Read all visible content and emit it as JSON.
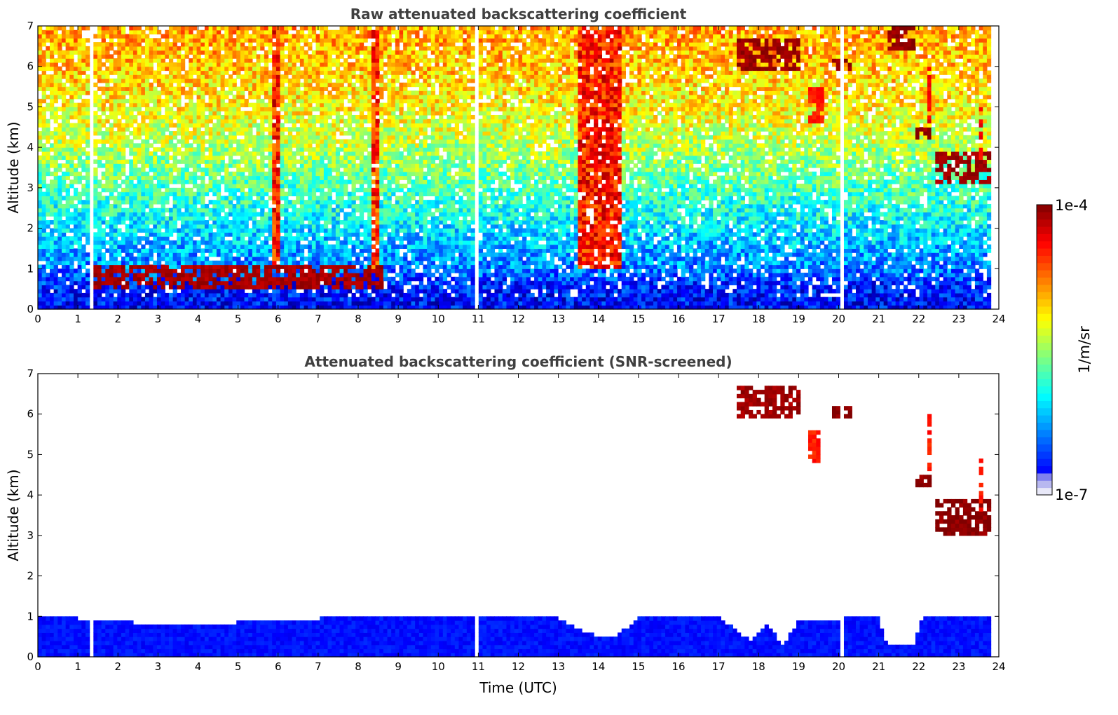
{
  "chart_data": [
    {
      "type": "heatmap",
      "title": "Raw attenuated backscattering coefficient",
      "xlabel": "",
      "ylabel": "Altitude (km)",
      "xlim": [
        0,
        24
      ],
      "ylim": [
        0,
        7
      ],
      "xticks": [
        0,
        1,
        2,
        3,
        4,
        5,
        6,
        7,
        8,
        9,
        10,
        11,
        12,
        13,
        14,
        15,
        16,
        17,
        18,
        19,
        20,
        21,
        22,
        23,
        24
      ],
      "yticks": [
        0,
        1,
        2,
        3,
        4,
        5,
        6,
        7
      ],
      "data_end_time": 23.8,
      "data_gaps_time": [
        1.3,
        11.0,
        20.05
      ],
      "background_profile": [
        {
          "altitude": 0.0,
          "level": 0.12
        },
        {
          "altitude": 0.6,
          "level": 0.16
        },
        {
          "altitude": 1.0,
          "level": 0.25
        },
        {
          "altitude": 2.0,
          "level": 0.35
        },
        {
          "altitude": 3.0,
          "level": 0.45
        },
        {
          "altitude": 4.0,
          "level": 0.55
        },
        {
          "altitude": 5.0,
          "level": 0.63
        },
        {
          "altitude": 6.0,
          "level": 0.68
        },
        {
          "altitude": 7.0,
          "level": 0.72
        }
      ],
      "enhanced_regions": [
        {
          "t0": 13.5,
          "t1": 14.6,
          "z0": 1.0,
          "z1": 7.0,
          "level": 0.85
        },
        {
          "t0": 5.9,
          "t1": 6.0,
          "z0": 1.0,
          "z1": 7.0,
          "level": 0.85
        },
        {
          "t0": 8.3,
          "t1": 8.5,
          "z0": 1.0,
          "z1": 7.0,
          "level": 0.82
        }
      ],
      "features": [
        {
          "name": "boundary layer top",
          "t0": 1.3,
          "t1": 8.6,
          "z0": 0.55,
          "z1": 1.05,
          "level": 0.96
        },
        {
          "name": "cloud",
          "t0": 17.5,
          "t1": 19.0,
          "z0": 5.9,
          "z1": 6.7,
          "level": 0.97
        },
        {
          "name": "cloud",
          "t0": 19.8,
          "t1": 20.3,
          "z0": 5.9,
          "z1": 6.2,
          "level": 0.97
        },
        {
          "name": "cloud",
          "t0": 19.2,
          "t1": 19.6,
          "z0": 4.6,
          "z1": 5.5,
          "level": 0.85
        },
        {
          "name": "cloud",
          "t0": 21.2,
          "t1": 21.9,
          "z0": 6.4,
          "z1": 7.0,
          "level": 0.98
        },
        {
          "name": "cloud",
          "t0": 21.9,
          "t1": 22.3,
          "z0": 4.2,
          "z1": 4.5,
          "level": 0.98
        },
        {
          "name": "cloud",
          "t0": 22.4,
          "t1": 23.8,
          "z0": 3.1,
          "z1": 3.9,
          "level": 0.97
        },
        {
          "name": "fall streak",
          "t0": 22.2,
          "t1": 22.3,
          "z0": 4.5,
          "z1": 6.0,
          "level": 0.88
        },
        {
          "name": "fall streak",
          "t0": 23.5,
          "t1": 23.6,
          "z0": 3.5,
          "z1": 5.0,
          "level": 0.88
        }
      ]
    },
    {
      "type": "heatmap",
      "title": "Attenuated backscattering coefficient (SNR-screened)",
      "xlabel": "Time (UTC)",
      "ylabel": "Altitude (km)",
      "xlim": [
        0,
        24
      ],
      "ylim": [
        0,
        7
      ],
      "xticks": [
        0,
        1,
        2,
        3,
        4,
        5,
        6,
        7,
        8,
        9,
        10,
        11,
        12,
        13,
        14,
        15,
        16,
        17,
        18,
        19,
        20,
        21,
        22,
        23,
        24
      ],
      "yticks": [
        0,
        1,
        2,
        3,
        4,
        5,
        6,
        7
      ],
      "data_end_time": 23.8,
      "data_gaps_time": [
        1.3,
        11.0,
        20.05
      ],
      "layer_top_km": [
        {
          "time": 0.0,
          "top": 1.05
        },
        {
          "time": 1.0,
          "top": 0.95
        },
        {
          "time": 3.0,
          "top": 0.8
        },
        {
          "time": 5.0,
          "top": 0.85
        },
        {
          "time": 7.0,
          "top": 0.95
        },
        {
          "time": 9.0,
          "top": 1.0
        },
        {
          "time": 11.0,
          "top": 1.0
        },
        {
          "time": 13.0,
          "top": 0.95
        },
        {
          "time": 13.5,
          "top": 0.7
        },
        {
          "time": 14.0,
          "top": 0.5
        },
        {
          "time": 14.5,
          "top": 0.55
        },
        {
          "time": 15.0,
          "top": 0.95
        },
        {
          "time": 17.0,
          "top": 1.0
        },
        {
          "time": 17.8,
          "top": 0.4
        },
        {
          "time": 18.2,
          "top": 0.8
        },
        {
          "time": 18.6,
          "top": 0.3
        },
        {
          "time": 19.0,
          "top": 0.9
        },
        {
          "time": 21.0,
          "top": 1.0
        },
        {
          "time": 21.2,
          "top": 0.3
        },
        {
          "time": 21.9,
          "top": 0.35
        },
        {
          "time": 22.1,
          "top": 1.0
        },
        {
          "time": 23.8,
          "top": 1.0
        }
      ],
      "features": [
        {
          "name": "cloud",
          "t0": 17.5,
          "t1": 19.0,
          "z0": 5.9,
          "z1": 6.7,
          "level": 0.97
        },
        {
          "name": "cloud",
          "t0": 19.8,
          "t1": 20.3,
          "z0": 5.9,
          "z1": 6.2,
          "level": 0.99
        },
        {
          "name": "cloud",
          "t0": 19.2,
          "t1": 19.5,
          "z0": 4.8,
          "z1": 5.6,
          "level": 0.85
        },
        {
          "name": "cloud",
          "t0": 21.9,
          "t1": 22.3,
          "z0": 4.2,
          "z1": 4.5,
          "level": 0.99
        },
        {
          "name": "cloud",
          "t0": 22.4,
          "t1": 23.8,
          "z0": 3.0,
          "z1": 3.9,
          "level": 0.99
        },
        {
          "name": "fall streak",
          "t0": 22.2,
          "t1": 22.3,
          "z0": 4.6,
          "z1": 6.0,
          "level": 0.85
        },
        {
          "name": "fall streak",
          "t0": 23.5,
          "t1": 23.6,
          "z0": 3.6,
          "z1": 4.9,
          "level": 0.85
        }
      ]
    }
  ],
  "colorbar": {
    "label": "1/m/sr",
    "max_label": "1e-4",
    "min_label": "1e-7",
    "colormap": "jet",
    "colors": [
      "#ffffff",
      "#000080",
      "#0000ff",
      "#0080ff",
      "#00ffff",
      "#80ff80",
      "#ffff00",
      "#ff8000",
      "#ff0000",
      "#800000"
    ]
  }
}
